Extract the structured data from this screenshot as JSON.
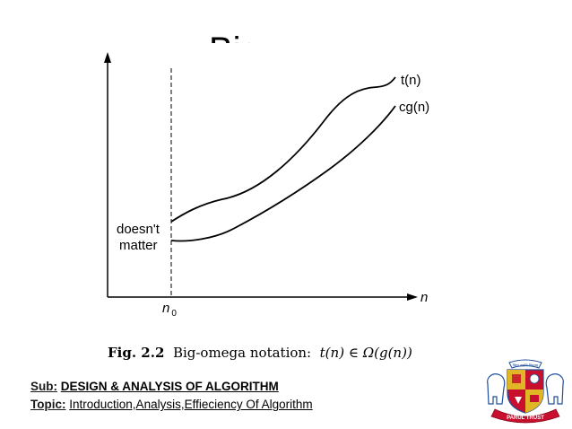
{
  "slide": {
    "title_fragment": "Big"
  },
  "diagram": {
    "curve_upper_label": "t(n)",
    "curve_lower_label": "cg(n)",
    "region_label_line1": "doesn't",
    "region_label_line2": "matter",
    "x_axis_label": "n",
    "n0_symbol": "n",
    "n0_subscript": "0"
  },
  "caption": {
    "figure_number": "Fig.  2.2",
    "text": "Big-omega notation:",
    "math": "t(n) ∈ Ω(g(n))"
  },
  "footer": {
    "sub_label": "Sub:",
    "sub_value": "DESIGN & ANALYSIS OF ALGORITHM",
    "topic_label": "Topic:",
    "topic_value": "Introduction,Analysis,Effieciency Of Algorithm"
  },
  "logo": {
    "banner_text": "PARUL TRUST",
    "top_text": "विद्या ददाति विनयम्",
    "colors": {
      "red": "#c8102e",
      "gold": "#e0b526",
      "blue": "#1f4e9c",
      "white": "#ffffff"
    }
  }
}
